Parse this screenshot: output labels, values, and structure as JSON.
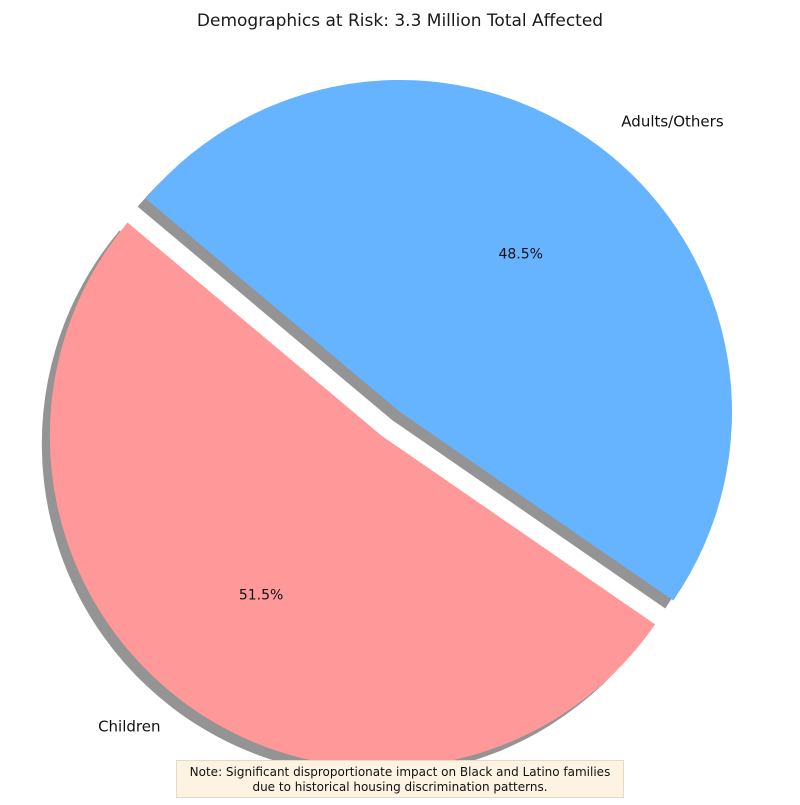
{
  "chart_data": {
    "type": "pie",
    "title": "Demographics at Risk: 3.3 Million Total Affected",
    "slices": [
      {
        "label": "Children",
        "value": 51.5,
        "pct_label": "51.5%",
        "color": "#ff9999",
        "exploded": true
      },
      {
        "label": "Adults/Others",
        "value": 48.5,
        "pct_label": "48.5%",
        "color": "#66b3ff",
        "exploded": false
      }
    ],
    "shadow": true,
    "annotation": {
      "lines": [
        "Note: Significant disproportionate impact on Black and Latino families",
        "due to historical housing discrimination patterns."
      ],
      "background": "#fdf3e3"
    }
  }
}
